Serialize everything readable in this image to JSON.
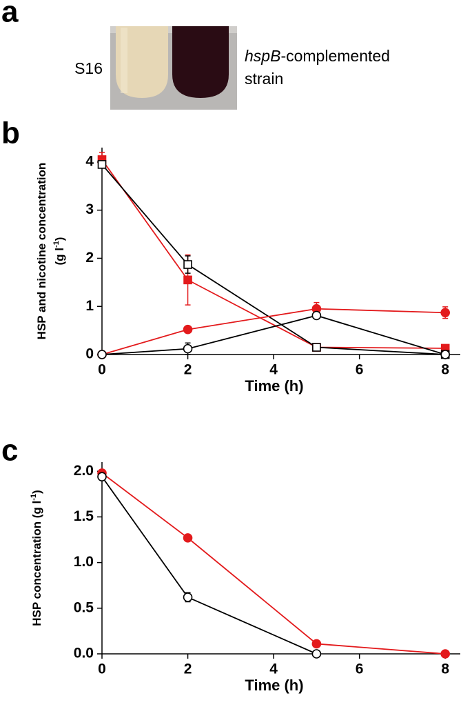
{
  "panel_labels": [
    "a",
    "b",
    "c"
  ],
  "photo_labels": {
    "left": "S16",
    "right_italic": "hspB",
    "right_rest": "-complemented",
    "right_line2": "strain"
  },
  "chart_data": [
    {
      "type": "line",
      "x_label": "Time (h)",
      "y_label": [
        "HSP and nicotine concentration",
        "(g l"
      ],
      "y_label_sup": "-1",
      "y_label_close": ")",
      "xlim": [
        0,
        8.35
      ],
      "xticks": [
        0,
        2,
        4,
        6,
        8
      ],
      "ylim": [
        0,
        4.3
      ],
      "yticks": [
        0,
        1,
        2,
        3,
        4
      ],
      "series": [
        {
          "color": "#e31a1c",
          "marker": "square",
          "filled": true,
          "x": [
            0,
            2,
            5,
            8
          ],
          "values": [
            4.05,
            1.55,
            0.15,
            0.13
          ],
          "errors": [
            0.15,
            0.52,
            0.05,
            0.03
          ]
        },
        {
          "color": "#000000",
          "marker": "square",
          "filled": false,
          "x": [
            0,
            2,
            5,
            8
          ],
          "values": [
            3.95,
            1.87,
            0.15,
            0.0
          ],
          "errors": [
            0.05,
            0.18,
            0.05,
            0.02
          ]
        },
        {
          "color": "#e31a1c",
          "marker": "circle",
          "filled": true,
          "x": [
            0,
            2,
            5,
            8
          ],
          "values": [
            0,
            0.52,
            0.95,
            0.87
          ],
          "errors": [
            0,
            0.03,
            0.13,
            0.12
          ]
        },
        {
          "color": "#000000",
          "marker": "circle",
          "filled": false,
          "x": [
            0,
            2,
            5,
            8
          ],
          "values": [
            0,
            0.12,
            0.81,
            0.0
          ],
          "errors": [
            0,
            0.12,
            0.04,
            0.02
          ]
        }
      ]
    },
    {
      "type": "line",
      "x_label": "Time (h)",
      "y_label": [
        "HSP concentration (g l"
      ],
      "y_label_sup": "-1",
      "y_label_close": ")",
      "xlim": [
        0,
        8.35
      ],
      "xticks": [
        0,
        2,
        4,
        6,
        8
      ],
      "ylim": [
        0,
        2.1
      ],
      "yticks": [
        {
          "value": 0,
          "label": "0.0"
        },
        {
          "value": 0.5,
          "label": "0.5"
        },
        {
          "value": 1,
          "label": "1.0"
        },
        {
          "value": 1.5,
          "label": "1.5"
        },
        {
          "value": 2,
          "label": "2.0"
        }
      ],
      "series": [
        {
          "color": "#e31a1c",
          "marker": "circle",
          "filled": true,
          "x": [
            0,
            2,
            5,
            8
          ],
          "values": [
            1.98,
            1.27,
            0.11,
            0.0
          ],
          "errors": [
            0.02,
            0.02,
            0.01,
            0.01
          ]
        },
        {
          "color": "#000000",
          "marker": "circle",
          "filled": false,
          "x": [
            0,
            2,
            5
          ],
          "values": [
            1.94,
            0.62,
            0.0
          ],
          "errors": [
            0.03,
            0.05,
            0.01
          ]
        }
      ]
    }
  ]
}
